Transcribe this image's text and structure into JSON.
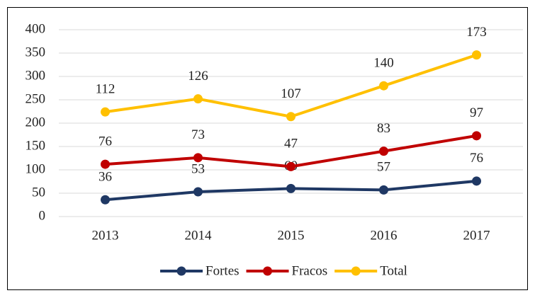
{
  "chart_data": {
    "type": "line",
    "stacked": true,
    "categories": [
      "2013",
      "2014",
      "2015",
      "2016",
      "2017"
    ],
    "series": [
      {
        "name": "Fortes",
        "color": "#1f3864",
        "values": [
          36,
          53,
          60,
          57,
          76
        ]
      },
      {
        "name": "Fracos",
        "color": "#c00000",
        "values": [
          76,
          73,
          47,
          83,
          97
        ]
      },
      {
        "name": "Total",
        "color": "#ffc000",
        "values": [
          112,
          126,
          107,
          140,
          173
        ]
      }
    ],
    "ylim": [
      0,
      400
    ],
    "yticks": [
      0,
      50,
      100,
      150,
      200,
      250,
      300,
      350,
      400
    ],
    "grid": true,
    "legend": "bottom",
    "data_labels": true
  }
}
